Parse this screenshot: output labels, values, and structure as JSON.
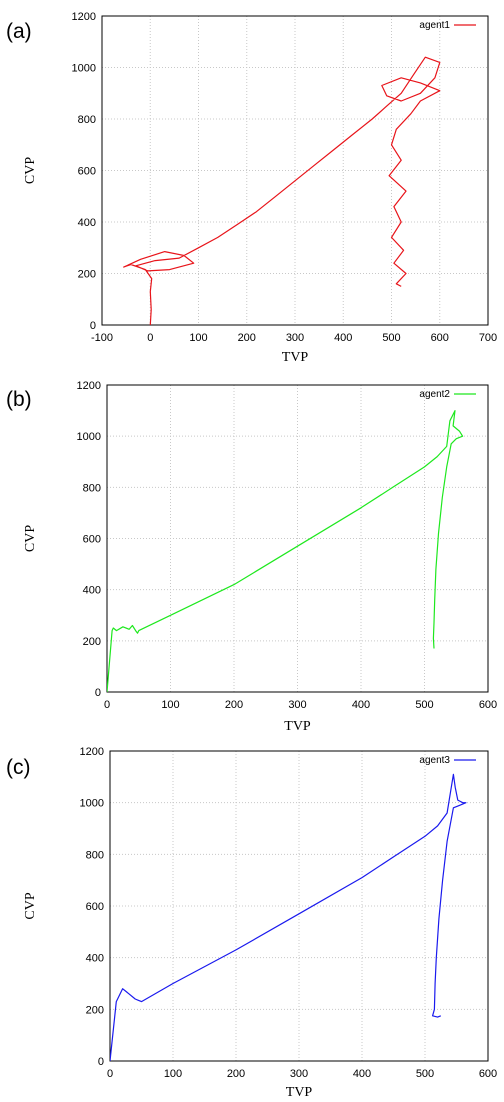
{
  "chart_data": [
    {
      "type": "line",
      "panel_label": "(a)",
      "xlabel": "TVP",
      "ylabel": "CVP",
      "xlim": [
        -100,
        700
      ],
      "ylim": [
        0,
        1200
      ],
      "xticks": [
        "-100",
        "0",
        "100",
        "200",
        "300",
        "400",
        "500",
        "600",
        "700"
      ],
      "yticks": [
        "0",
        "200",
        "400",
        "600",
        "800",
        "1000",
        "1200"
      ],
      "grid": true,
      "legend_position": "top-right",
      "color": "#e8141a",
      "series": [
        {
          "name": "agent1",
          "x": [
            0,
            2,
            0,
            3,
            -10,
            -40,
            -55,
            -20,
            30,
            70,
            90,
            40,
            -5,
            -30,
            10,
            60,
            100,
            140,
            180,
            220,
            260,
            300,
            340,
            380,
            420,
            460,
            490,
            520,
            545,
            570,
            600,
            590,
            560,
            520,
            490,
            480,
            520,
            560,
            600,
            560,
            540,
            510,
            500,
            520,
            495,
            530,
            505,
            520,
            500,
            525,
            505,
            530,
            510,
            520
          ],
          "y": [
            0,
            60,
            130,
            180,
            215,
            235,
            225,
            255,
            285,
            270,
            240,
            215,
            210,
            230,
            250,
            260,
            300,
            340,
            390,
            440,
            500,
            560,
            620,
            680,
            740,
            800,
            850,
            900,
            970,
            1040,
            1020,
            960,
            900,
            870,
            890,
            930,
            960,
            940,
            910,
            870,
            820,
            760,
            700,
            640,
            580,
            520,
            460,
            400,
            340,
            290,
            240,
            200,
            160,
            150
          ]
        }
      ]
    },
    {
      "type": "line",
      "panel_label": "(b)",
      "xlabel": "TVP",
      "ylabel": "CVP",
      "xlim": [
        0,
        600
      ],
      "ylim": [
        0,
        1200
      ],
      "xticks": [
        "0",
        "100",
        "200",
        "300",
        "400",
        "500",
        "600"
      ],
      "yticks": [
        "0",
        "200",
        "400",
        "600",
        "800",
        "1000",
        "1200"
      ],
      "grid": true,
      "legend_position": "top-right",
      "color": "#1ee81e",
      "series": [
        {
          "name": "agent2",
          "x": [
            0,
            8,
            10,
            15,
            25,
            35,
            40,
            45,
            48,
            50,
            100,
            200,
            300,
            400,
            450,
            500,
            520,
            535,
            540,
            548,
            545,
            555,
            560,
            550,
            542,
            535,
            528,
            522,
            518,
            516,
            515,
            514,
            515
          ],
          "y": [
            0,
            240,
            250,
            240,
            255,
            245,
            260,
            240,
            230,
            240,
            300,
            420,
            570,
            720,
            800,
            880,
            920,
            960,
            1060,
            1100,
            1040,
            1020,
            1000,
            990,
            970,
            880,
            760,
            620,
            480,
            360,
            270,
            210,
            170
          ]
        }
      ]
    },
    {
      "type": "line",
      "panel_label": "(c)",
      "xlabel": "TVP",
      "ylabel": "CVP",
      "xlim": [
        0,
        600
      ],
      "ylim": [
        0,
        1200
      ],
      "xticks": [
        "0",
        "100",
        "200",
        "300",
        "400",
        "500",
        "600"
      ],
      "yticks": [
        "0",
        "200",
        "400",
        "600",
        "800",
        "1000",
        "1200"
      ],
      "grid": true,
      "legend_position": "top-right",
      "color": "#1a1aee",
      "series": [
        {
          "name": "agent3",
          "x": [
            0,
            10,
            12,
            20,
            30,
            40,
            45,
            50,
            100,
            200,
            300,
            400,
            450,
            500,
            520,
            535,
            545,
            548,
            552,
            560,
            565,
            555,
            545,
            535,
            528,
            522,
            518,
            516,
            515,
            512,
            520,
            525
          ],
          "y": [
            0,
            230,
            240,
            280,
            260,
            240,
            235,
            230,
            300,
            430,
            570,
            710,
            790,
            870,
            910,
            960,
            1110,
            1060,
            1010,
            1000,
            1000,
            990,
            980,
            850,
            700,
            550,
            400,
            300,
            200,
            175,
            170,
            175
          ]
        }
      ]
    }
  ]
}
